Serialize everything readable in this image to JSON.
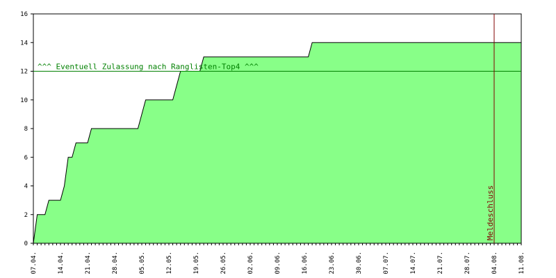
{
  "chart_data": {
    "type": "area",
    "y_ticks": [
      0,
      2,
      4,
      6,
      8,
      10,
      12,
      14,
      16
    ],
    "ylim": [
      0,
      16
    ],
    "x_tick_labels": [
      "07.04.",
      "14.04.",
      "21.04.",
      "28.04.",
      "05.05.",
      "12.05.",
      "19.05.",
      "26.05.",
      "02.06.",
      "09.06.",
      "16.06.",
      "23.06.",
      "30.06.",
      "07.07.",
      "14.07.",
      "21.07.",
      "28.07.",
      "04.08.",
      "11.08."
    ],
    "xlim": [
      "2024-04-07",
      "2024-08-11"
    ],
    "series": [
      {
        "values": [
          [
            "2024-04-07",
            0
          ],
          [
            "2024-04-08",
            2
          ],
          [
            "2024-04-10",
            2
          ],
          [
            "2024-04-11",
            3
          ],
          [
            "2024-04-14",
            3
          ],
          [
            "2024-04-15",
            4
          ],
          [
            "2024-04-16",
            6
          ],
          [
            "2024-04-17",
            6
          ],
          [
            "2024-04-18",
            7
          ],
          [
            "2024-04-21",
            7
          ],
          [
            "2024-04-22",
            8
          ],
          [
            "2024-05-04",
            8
          ],
          [
            "2024-05-05",
            9
          ],
          [
            "2024-05-06",
            10
          ],
          [
            "2024-05-13",
            10
          ],
          [
            "2024-05-15",
            12
          ],
          [
            "2024-05-20",
            12
          ],
          [
            "2024-05-21",
            13
          ],
          [
            "2024-06-17",
            13
          ],
          [
            "2024-06-18",
            14
          ],
          [
            "2024-08-11",
            14
          ]
        ]
      }
    ],
    "fill_color": "#88ff88",
    "line_color": "#000000",
    "grid": false,
    "annotations": {
      "threshold_line": {
        "value": 12,
        "color": "#008000",
        "label": "^^^ Eventuell Zulassung nach Ranglisten-Top4 ^^^"
      },
      "deadline_line": {
        "date": "2024-08-04",
        "color": "#800000",
        "label": "Meldeschluss"
      }
    }
  }
}
